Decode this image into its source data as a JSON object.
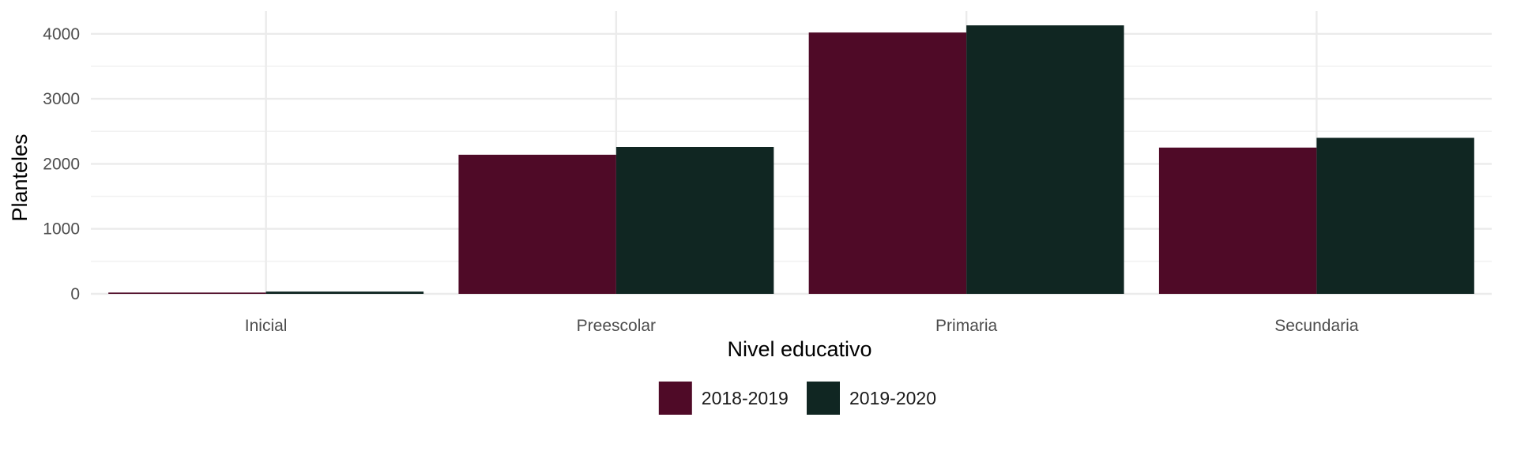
{
  "chart_data": {
    "type": "bar",
    "title": "",
    "xlabel": "Nivel educativo",
    "ylabel": "Planteles",
    "categories": [
      "Inicial",
      "Preescolar",
      "Primaria",
      "Secundaria"
    ],
    "series": [
      {
        "name": "2018-2019",
        "color": "#4f0a27",
        "values": [
          20,
          2140,
          4020,
          2250
        ]
      },
      {
        "name": "2019-2020",
        "color": "#102622",
        "values": [
          35,
          2260,
          4130,
          2400
        ]
      }
    ],
    "ylim": [
      0,
      4350
    ],
    "yticks": [
      0,
      1000,
      2000,
      3000,
      4000
    ],
    "ytick_labels": [
      "0",
      "1000",
      "2000",
      "3000",
      "4000"
    ],
    "grid": true,
    "legend_position": "bottom"
  }
}
